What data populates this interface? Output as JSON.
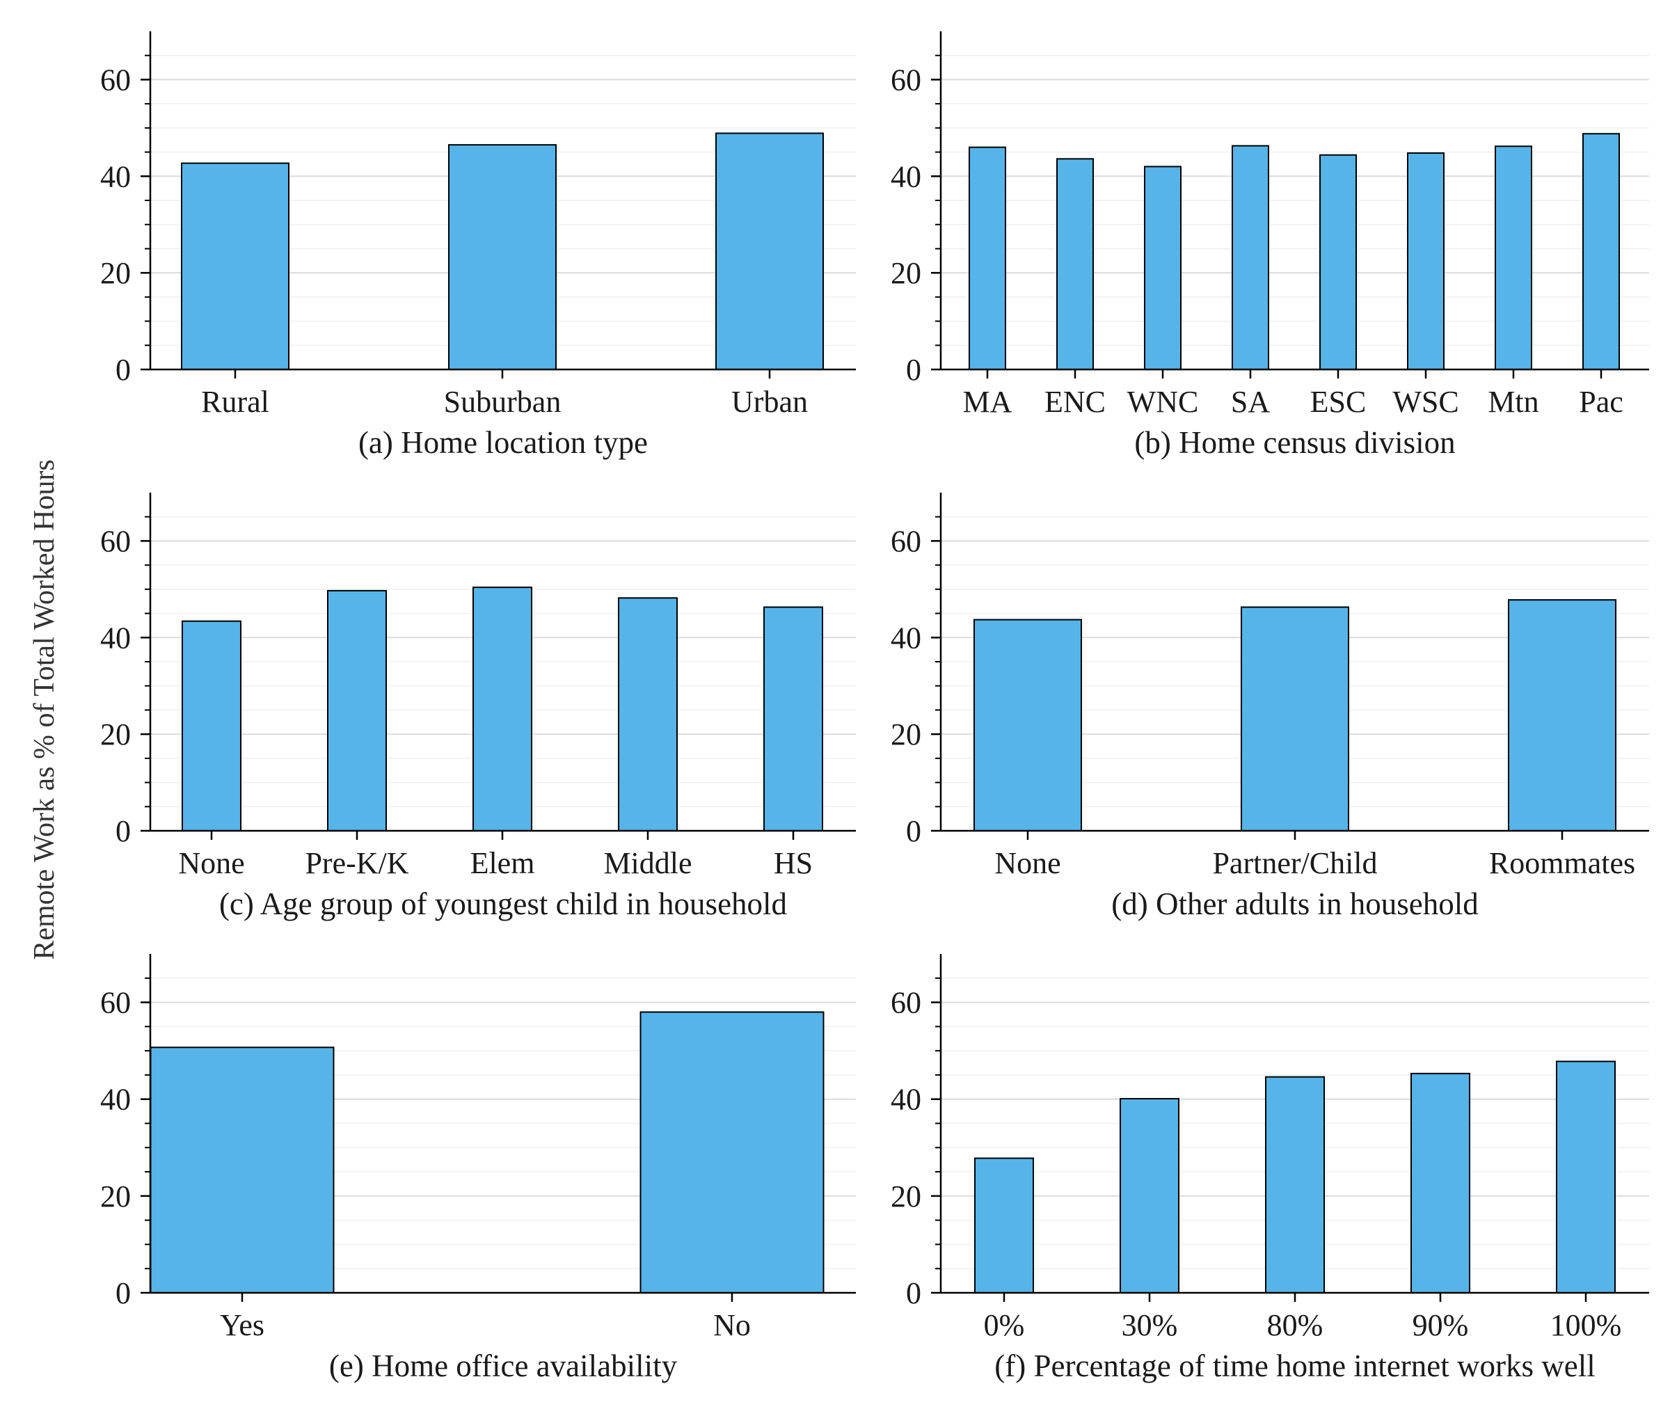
{
  "figure": {
    "ylabel": "Remote Work as % of Total Worked Hours"
  },
  "colors": {
    "bar_fill": "#56B4E9",
    "bar_edge": "#000000",
    "grid_major": "#dcdcdc",
    "grid_minor": "#efefef",
    "axis": "#000000"
  },
  "chart_data": [
    {
      "type": "bar",
      "title": "(a) Home location type",
      "categories": [
        "Rural",
        "Suburban",
        "Urban"
      ],
      "values": [
        42.7,
        46.5,
        48.9
      ],
      "ylim": [
        0,
        70
      ],
      "yticks": [
        0,
        20,
        40,
        60
      ],
      "grid": true
    },
    {
      "type": "bar",
      "title": "(b) Home census division",
      "categories": [
        "MA",
        "ENC",
        "WNC",
        "SA",
        "ESC",
        "WSC",
        "Mtn",
        "Pac"
      ],
      "values": [
        46.0,
        43.6,
        42.0,
        46.3,
        44.4,
        44.8,
        46.2,
        48.8
      ],
      "ylim": [
        0,
        70
      ],
      "yticks": [
        0,
        20,
        40,
        60
      ],
      "grid": true
    },
    {
      "type": "bar",
      "title": "(c) Age group of youngest child in household",
      "categories": [
        "None",
        "Pre-K/K",
        "Elem",
        "Middle",
        "HS"
      ],
      "values": [
        43.4,
        49.7,
        50.4,
        48.2,
        46.3
      ],
      "ylim": [
        0,
        70
      ],
      "yticks": [
        0,
        20,
        40,
        60
      ],
      "grid": true
    },
    {
      "type": "bar",
      "title": "(d) Other adults in household",
      "categories": [
        "None",
        "Partner/Child",
        "Roommates"
      ],
      "values": [
        43.7,
        46.3,
        47.8
      ],
      "ylim": [
        0,
        70
      ],
      "yticks": [
        0,
        20,
        40,
        60
      ],
      "grid": true
    },
    {
      "type": "bar",
      "title": "(e) Home office availability",
      "categories": [
        "Yes",
        "No"
      ],
      "values": [
        50.7,
        58.0
      ],
      "ylim": [
        0,
        70
      ],
      "yticks": [
        0,
        20,
        40,
        60
      ],
      "grid": true
    },
    {
      "type": "bar",
      "title": "(f) Percentage of time home internet works well",
      "categories": [
        "0%",
        "30%",
        "80%",
        "90%",
        "100%"
      ],
      "values": [
        27.8,
        40.1,
        44.6,
        45.3,
        47.8
      ],
      "ylim": [
        0,
        70
      ],
      "yticks": [
        0,
        20,
        40,
        60
      ],
      "grid": true
    }
  ]
}
